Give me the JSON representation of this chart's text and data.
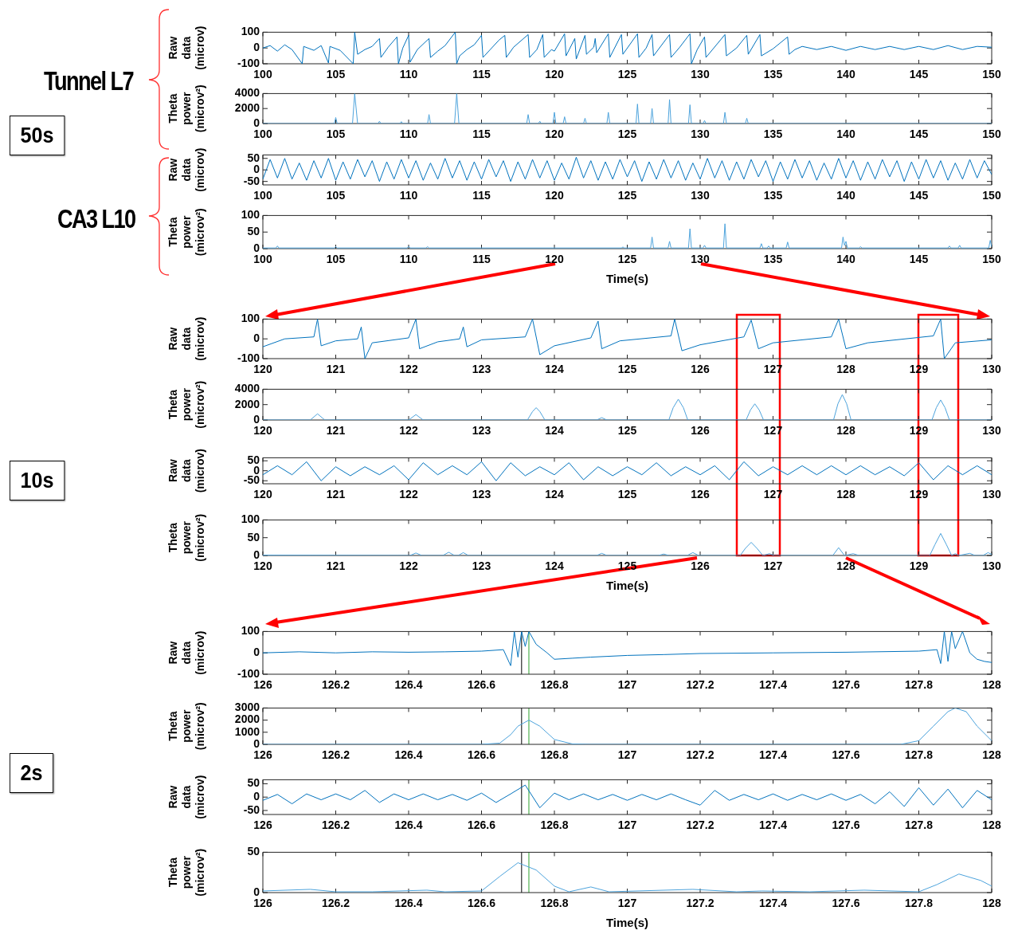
{
  "chart_data": [
    {
      "type": "line",
      "ylabel": "Raw data (microv)",
      "color": "#0072bd",
      "annotations": [
        "Tunnel L7",
        "50s"
      ],
      "xlim": [
        100,
        150
      ],
      "xticks": [
        100,
        105,
        110,
        115,
        120,
        125,
        130,
        135,
        140,
        145,
        150
      ],
      "ylim": [
        -100,
        100
      ],
      "yticks": [
        -100,
        0,
        100
      ],
      "x": [
        100,
        100.5,
        101,
        101.5,
        102,
        102.7,
        102.8,
        103.5,
        104,
        104.5,
        104.6,
        105.3,
        106.2,
        106.3,
        106.5,
        107,
        107.5,
        108,
        108.1,
        108.6,
        109.2,
        109.3,
        109.6,
        110,
        110.1,
        110.6,
        111.4,
        111.5,
        112,
        112.5,
        113.2,
        113.3,
        113.5,
        114,
        114.5,
        115,
        115.1,
        115.6,
        116.2,
        116.6,
        116.7,
        117.2,
        118.2,
        118.3,
        118.8,
        119.2,
        119.3,
        119.8,
        120,
        120.7,
        120.8,
        121.4,
        121.5,
        122.1,
        122.2,
        122.7,
        122.8,
        122.9,
        123.7,
        123.8,
        124.6,
        124.7,
        125.7,
        125.8,
        126.3,
        126.7,
        126.8,
        127.9,
        128,
        128.6,
        129.3,
        129.4,
        129.8,
        130.3,
        130.4,
        131.7,
        131.8,
        132.5,
        133.2,
        133.3,
        134.1,
        134.2,
        135,
        136,
        136.1,
        136.5,
        137,
        138,
        139,
        140,
        141,
        142,
        143,
        144,
        145,
        146,
        147,
        148,
        149,
        150
      ],
      "values": [
        0,
        15,
        -20,
        20,
        -10,
        -100,
        10,
        -15,
        15,
        -95,
        10,
        -15,
        -100,
        100,
        -40,
        -10,
        10,
        60,
        -60,
        5,
        70,
        -100,
        0,
        80,
        -90,
        -10,
        60,
        -60,
        -20,
        15,
        100,
        -100,
        -50,
        -10,
        20,
        80,
        -60,
        -10,
        50,
        80,
        -60,
        5,
        85,
        -60,
        -10,
        85,
        -60,
        -10,
        -20,
        90,
        -50,
        60,
        -70,
        80,
        -40,
        5,
        60,
        -30,
        90,
        -60,
        85,
        -40,
        90,
        -60,
        0,
        85,
        -50,
        85,
        -60,
        5,
        90,
        -100,
        -10,
        70,
        -60,
        85,
        -50,
        0,
        80,
        -40,
        85,
        -50,
        -5,
        70,
        -40,
        -10,
        10,
        -10,
        10,
        -15,
        10,
        -10,
        10,
        -10,
        10,
        -10,
        15,
        -10,
        10,
        5
      ]
    },
    {
      "type": "line",
      "ylabel": "Theta power (microv²)",
      "color": "#4da3dc",
      "xlim": [
        100,
        150
      ],
      "xticks": [
        100,
        105,
        110,
        115,
        120,
        125,
        130,
        135,
        140,
        145,
        150
      ],
      "ylim": [
        0,
        4000
      ],
      "yticks": [
        0,
        2000,
        4000
      ],
      "x": [
        100,
        104.9,
        105,
        105.1,
        106.15,
        106.3,
        106.5,
        107.9,
        108,
        108.1,
        109.4,
        109.5,
        109.6,
        111.3,
        111.4,
        111.5,
        113.15,
        113.3,
        113.45,
        118.1,
        118.2,
        118.3,
        118.9,
        119,
        119.1,
        119.9,
        120,
        120.1,
        120.6,
        120.7,
        120.8,
        122,
        122.1,
        122.2,
        123.6,
        123.7,
        123.8,
        125.6,
        125.7,
        125.8,
        126.6,
        126.7,
        126.8,
        127.8,
        127.9,
        128,
        129.2,
        129.3,
        129.4,
        130.2,
        130.3,
        130.4,
        131.6,
        131.7,
        131.8,
        133.1,
        133.2,
        133.3,
        150
      ],
      "values": [
        0,
        0,
        800,
        0,
        0,
        4000,
        0,
        0,
        300,
        0,
        0,
        250,
        0,
        0,
        1200,
        0,
        0,
        4000,
        0,
        0,
        1200,
        0,
        0,
        300,
        0,
        0,
        1500,
        0,
        0,
        900,
        0,
        0,
        700,
        0,
        0,
        1500,
        0,
        0,
        2600,
        0,
        0,
        2000,
        0,
        0,
        3200,
        0,
        0,
        2500,
        0,
        0,
        400,
        0,
        0,
        1500,
        0,
        0,
        700,
        0,
        0
      ]
    },
    {
      "type": "line",
      "ylabel": "Raw data (microv)",
      "color": "#0072bd",
      "annotations": [
        "CA3 L10"
      ],
      "xlim": [
        100,
        150
      ],
      "xticks": [
        100,
        105,
        110,
        115,
        120,
        125,
        130,
        135,
        140,
        145,
        150
      ],
      "ylim": [
        -65,
        65
      ],
      "yticks": [
        -50,
        0,
        50
      ],
      "x": [
        100,
        100.5,
        101,
        101.5,
        102,
        102.5,
        103,
        103.5,
        104,
        104.5,
        105,
        105.5,
        106,
        106.5,
        107,
        107.5,
        108,
        108.5,
        109,
        109.5,
        110,
        110.5,
        111,
        111.5,
        112,
        112.5,
        113,
        113.5,
        114,
        114.5,
        115,
        115.5,
        116,
        116.5,
        117,
        117.5,
        118,
        118.5,
        119,
        119.5,
        120,
        120.5,
        121,
        121.5,
        122,
        122.5,
        123,
        123.5,
        124,
        124.5,
        125,
        125.5,
        126,
        126.5,
        127,
        127.5,
        128,
        128.5,
        129,
        129.5,
        130,
        130.5,
        131,
        131.5,
        132,
        132.5,
        133,
        133.5,
        134,
        134.5,
        135,
        135.5,
        136,
        136.5,
        137,
        137.5,
        138,
        138.5,
        139,
        139.5,
        140,
        140.5,
        141,
        141.5,
        142,
        142.5,
        143,
        143.5,
        144,
        144.5,
        145,
        145.5,
        146,
        146.5,
        147,
        147.5,
        148,
        148.5,
        149,
        149.5,
        150
      ],
      "values": [
        -40,
        45,
        -35,
        50,
        -40,
        30,
        -45,
        40,
        -35,
        50,
        -45,
        35,
        -40,
        45,
        -30,
        40,
        -50,
        35,
        -40,
        45,
        -35,
        40,
        -45,
        30,
        -40,
        50,
        -35,
        40,
        -45,
        35,
        -40,
        45,
        -30,
        40,
        -50,
        35,
        -40,
        45,
        -35,
        40,
        -45,
        30,
        -40,
        55,
        -35,
        40,
        -45,
        35,
        -40,
        45,
        -30,
        40,
        -50,
        35,
        -40,
        45,
        -35,
        40,
        -45,
        30,
        -40,
        50,
        -35,
        40,
        -45,
        35,
        -40,
        45,
        -30,
        40,
        -50,
        35,
        -40,
        45,
        -35,
        40,
        -45,
        30,
        -40,
        50,
        -35,
        40,
        -45,
        35,
        -40,
        45,
        -30,
        40,
        -50,
        35,
        -40,
        45,
        -35,
        40,
        -45,
        30,
        -40,
        45,
        -35,
        40,
        -20
      ]
    },
    {
      "type": "line",
      "ylabel": "Theta power (microv²)",
      "xlabel": "Time(s)",
      "color": "#4da3dc",
      "xlim": [
        100,
        150
      ],
      "xticks": [
        100,
        105,
        110,
        115,
        120,
        125,
        130,
        135,
        140,
        145,
        150
      ],
      "ylim": [
        0,
        100
      ],
      "yticks": [
        0,
        50,
        100
      ],
      "x": [
        100,
        100.9,
        101,
        101.1,
        104.9,
        105,
        105.1,
        109.9,
        110,
        110.1,
        111.2,
        111.3,
        111.4,
        124.6,
        124.7,
        124.8,
        126.6,
        126.7,
        126.8,
        127.8,
        127.9,
        128,
        129.2,
        129.3,
        129.4,
        130.2,
        130.3,
        130.4,
        131.6,
        131.7,
        131.8,
        134.1,
        134.2,
        134.3,
        134.6,
        134.7,
        134.8,
        135.9,
        136,
        136.1,
        139.7,
        139.8,
        139.9,
        140,
        140.1,
        140.9,
        141,
        141.1,
        147,
        147.1,
        147.2,
        147.7,
        147.8,
        147.9,
        149.8,
        149.9,
        150
      ],
      "values": [
        2,
        2,
        8,
        2,
        2,
        6,
        2,
        2,
        7,
        2,
        2,
        6,
        2,
        2,
        5,
        2,
        2,
        35,
        2,
        2,
        22,
        2,
        2,
        60,
        2,
        2,
        10,
        2,
        2,
        75,
        2,
        2,
        15,
        2,
        2,
        8,
        2,
        2,
        20,
        2,
        2,
        35,
        10,
        22,
        2,
        2,
        6,
        2,
        2,
        8,
        2,
        2,
        10,
        2,
        2,
        25,
        5
      ]
    },
    {
      "type": "line",
      "ylabel": "Raw data (microv)",
      "color": "#0072bd",
      "annotations": [
        "10s"
      ],
      "xlim": [
        120,
        130
      ],
      "xticks": [
        120,
        121,
        122,
        123,
        124,
        125,
        126,
        127,
        128,
        129,
        130
      ],
      "ylim": [
        -100,
        100
      ],
      "yticks": [
        -100,
        0,
        100
      ],
      "x": [
        120,
        120.3,
        120.7,
        120.75,
        120.8,
        121,
        121.3,
        121.35,
        121.4,
        121.5,
        122,
        122.1,
        122.15,
        122.4,
        122.7,
        122.75,
        122.8,
        123,
        123.6,
        123.7,
        123.8,
        124,
        124.5,
        124.6,
        124.65,
        124.9,
        125.6,
        125.65,
        125.75,
        126,
        126.6,
        126.7,
        126.8,
        127,
        127.8,
        127.9,
        128,
        128.3,
        129.2,
        129.3,
        129.35,
        129.5,
        130
      ],
      "values": [
        -40,
        0,
        10,
        100,
        -35,
        -10,
        0,
        60,
        -100,
        -20,
        5,
        100,
        -50,
        -15,
        0,
        60,
        -40,
        -5,
        10,
        100,
        -80,
        -35,
        5,
        90,
        -50,
        -10,
        15,
        100,
        -60,
        -30,
        10,
        95,
        -50,
        -20,
        10,
        100,
        -50,
        -20,
        15,
        100,
        -100,
        -20,
        -5
      ]
    },
    {
      "type": "line",
      "ylabel": "Theta power (microv²)",
      "color": "#4da3dc",
      "xlim": [
        120,
        130
      ],
      "xticks": [
        120,
        121,
        122,
        123,
        124,
        125,
        126,
        127,
        128,
        129,
        130
      ],
      "ylim": [
        0,
        4000
      ],
      "yticks": [
        0,
        2000,
        4000
      ],
      "x": [
        120,
        120.65,
        120.75,
        120.85,
        122,
        122.1,
        122.2,
        123.63,
        123.7,
        123.75,
        123.8,
        123.87,
        124.58,
        124.65,
        124.72,
        125.57,
        125.63,
        125.7,
        125.77,
        125.83,
        126.63,
        126.69,
        126.75,
        126.81,
        126.87,
        127.83,
        127.89,
        127.95,
        128.01,
        128.07,
        129.18,
        129.24,
        129.3,
        129.36,
        129.42,
        130
      ],
      "values": [
        0,
        0,
        800,
        0,
        0,
        700,
        0,
        0,
        1100,
        1600,
        1100,
        0,
        0,
        300,
        0,
        0,
        1600,
        2700,
        1600,
        0,
        0,
        1300,
        2100,
        1300,
        0,
        0,
        2100,
        3300,
        2100,
        0,
        0,
        1600,
        2600,
        1600,
        0,
        0
      ]
    },
    {
      "type": "line",
      "ylabel": "Raw data (microv)",
      "color": "#0072bd",
      "xlim": [
        120,
        130
      ],
      "xticks": [
        120,
        121,
        122,
        123,
        124,
        125,
        126,
        127,
        128,
        129,
        130
      ],
      "ylim": [
        -65,
        65
      ],
      "yticks": [
        -50,
        0,
        50
      ],
      "x": [
        120,
        120.2,
        120.4,
        120.6,
        120.8,
        121,
        121.2,
        121.4,
        121.6,
        121.8,
        122,
        122.2,
        122.4,
        122.6,
        122.8,
        123,
        123.2,
        123.4,
        123.6,
        123.8,
        124,
        124.2,
        124.4,
        124.6,
        124.8,
        125,
        125.2,
        125.4,
        125.6,
        125.8,
        126,
        126.2,
        126.4,
        126.6,
        126.8,
        127,
        127.2,
        127.4,
        127.6,
        127.8,
        128,
        128.2,
        128.4,
        128.6,
        128.8,
        129,
        129.2,
        129.4,
        129.6,
        129.8,
        130
      ],
      "values": [
        -20,
        25,
        -20,
        45,
        -50,
        20,
        -25,
        20,
        -20,
        25,
        -45,
        40,
        -20,
        25,
        -20,
        45,
        -50,
        40,
        -25,
        20,
        -20,
        40,
        -45,
        20,
        -25,
        20,
        -20,
        40,
        -25,
        20,
        -20,
        25,
        -45,
        45,
        -25,
        20,
        -20,
        25,
        -20,
        25,
        -20,
        25,
        -20,
        20,
        -25,
        40,
        -45,
        25,
        -20,
        25,
        -20
      ]
    },
    {
      "type": "line",
      "ylabel": "Theta power (microv²)",
      "xlabel": "Time(s)",
      "color": "#4da3dc",
      "xlim": [
        120,
        130
      ],
      "xticks": [
        120,
        121,
        122,
        123,
        124,
        125,
        126,
        127,
        128,
        129,
        130
      ],
      "ylim": [
        0,
        100
      ],
      "yticks": [
        0,
        50,
        100
      ],
      "x": [
        120,
        122.02,
        122.1,
        122.18,
        122.47,
        122.55,
        122.63,
        122.68,
        122.75,
        122.82,
        124.58,
        124.65,
        124.72,
        125.43,
        125.5,
        125.57,
        125.82,
        125.9,
        125.98,
        126.55,
        126.62,
        126.7,
        126.78,
        126.86,
        126.95,
        127.02,
        127.82,
        127.9,
        127.98,
        128.1,
        128.18,
        129.15,
        129.22,
        129.3,
        129.38,
        129.45,
        129.5,
        129.55,
        129.7,
        129.77,
        129.88,
        129.95,
        130
      ],
      "values": [
        1,
        0,
        7,
        0,
        0,
        9,
        0,
        0,
        8,
        0,
        0,
        6,
        0,
        0,
        4,
        0,
        0,
        8,
        0,
        0,
        20,
        37,
        20,
        0,
        5,
        0,
        0,
        22,
        0,
        5,
        0,
        0,
        30,
        62,
        30,
        0,
        5,
        0,
        6,
        0,
        0,
        8,
        3
      ]
    },
    {
      "type": "line",
      "ylabel": "Raw data (microv)",
      "color": "#0072bd",
      "annotations": [
        "2s"
      ],
      "xlim": [
        126,
        128
      ],
      "xticks": [
        126,
        126.2,
        126.4,
        126.6,
        126.8,
        127,
        127.2,
        127.4,
        127.6,
        127.8,
        128
      ],
      "ylim": [
        -100,
        100
      ],
      "yticks": [
        -100,
        0,
        100
      ],
      "ref_lines": [
        {
          "axis": "x",
          "value": 126.71,
          "color": "#000000"
        },
        {
          "axis": "x",
          "value": 126.73,
          "color": "#2ca02c"
        }
      ],
      "x": [
        126,
        126.1,
        126.2,
        126.3,
        126.4,
        126.5,
        126.6,
        126.66,
        126.68,
        126.69,
        126.7,
        126.71,
        126.72,
        126.73,
        126.75,
        126.78,
        126.8,
        126.85,
        126.9,
        127,
        127.1,
        127.2,
        127.4,
        127.6,
        127.8,
        127.85,
        127.86,
        127.87,
        127.88,
        127.89,
        127.9,
        127.92,
        127.94,
        127.96,
        127.98,
        128
      ],
      "values": [
        0,
        5,
        0,
        5,
        3,
        5,
        8,
        15,
        -60,
        100,
        -20,
        100,
        30,
        100,
        40,
        0,
        -30,
        -25,
        -20,
        -12,
        -8,
        -3,
        0,
        3,
        8,
        15,
        -50,
        100,
        -40,
        100,
        20,
        100,
        0,
        -30,
        -40,
        -45
      ]
    },
    {
      "type": "line",
      "ylabel": "Theta power (microv²)",
      "color": "#4da3dc",
      "xlim": [
        126,
        128
      ],
      "xticks": [
        126,
        126.2,
        126.4,
        126.6,
        126.8,
        127,
        127.2,
        127.4,
        127.6,
        127.8,
        128
      ],
      "ylim": [
        0,
        3000
      ],
      "yticks": [
        0,
        1000,
        2000,
        3000
      ],
      "ref_lines": [
        {
          "axis": "x",
          "value": 126.71,
          "color": "#000000"
        },
        {
          "axis": "x",
          "value": 126.73,
          "color": "#2ca02c"
        }
      ],
      "x": [
        126,
        126.6,
        126.65,
        126.68,
        126.7,
        126.73,
        126.76,
        126.8,
        126.85,
        126.9,
        127.75,
        127.8,
        127.84,
        127.88,
        127.9,
        127.93,
        127.96,
        128
      ],
      "values": [
        0,
        0,
        100,
        800,
        1500,
        2000,
        1500,
        400,
        30,
        0,
        0,
        300,
        1500,
        2700,
        3000,
        2700,
        1500,
        300
      ]
    },
    {
      "type": "line",
      "ylabel": "Raw data (microv)",
      "color": "#0072bd",
      "xlim": [
        126,
        128
      ],
      "xticks": [
        126,
        126.2,
        126.4,
        126.6,
        126.8,
        127,
        127.2,
        127.4,
        127.6,
        127.8,
        128
      ],
      "ylim": [
        -65,
        65
      ],
      "yticks": [
        -50,
        0,
        50
      ],
      "ref_lines": [
        {
          "axis": "x",
          "value": 126.71,
          "color": "#000000"
        },
        {
          "axis": "x",
          "value": 126.73,
          "color": "#2ca02c"
        }
      ],
      "x": [
        126,
        126.04,
        126.08,
        126.12,
        126.16,
        126.2,
        126.24,
        126.28,
        126.32,
        126.36,
        126.4,
        126.44,
        126.48,
        126.52,
        126.56,
        126.6,
        126.64,
        126.68,
        126.72,
        126.76,
        126.8,
        126.84,
        126.88,
        126.92,
        126.96,
        127,
        127.04,
        127.08,
        127.12,
        127.16,
        127.2,
        127.24,
        127.28,
        127.32,
        127.36,
        127.4,
        127.44,
        127.48,
        127.52,
        127.56,
        127.6,
        127.64,
        127.68,
        127.72,
        127.76,
        127.8,
        127.84,
        127.88,
        127.92,
        127.96,
        128
      ],
      "values": [
        -12,
        10,
        -25,
        12,
        -10,
        12,
        -10,
        25,
        -20,
        12,
        -10,
        12,
        -10,
        10,
        -12,
        15,
        -20,
        12,
        45,
        -40,
        15,
        -10,
        12,
        -10,
        10,
        -12,
        10,
        -10,
        12,
        -10,
        -30,
        25,
        -12,
        10,
        -10,
        12,
        -12,
        10,
        -10,
        12,
        -12,
        10,
        -25,
        20,
        -35,
        35,
        -30,
        30,
        -40,
        25,
        -10
      ]
    },
    {
      "type": "line",
      "ylabel": "Theta power (microv²)",
      "xlabel": "Time(s)",
      "color": "#4da3dc",
      "xlim": [
        126,
        128
      ],
      "xticks": [
        126,
        126.2,
        126.4,
        126.6,
        126.8,
        127,
        127.2,
        127.4,
        127.6,
        127.8,
        128
      ],
      "ylim": [
        0,
        50
      ],
      "yticks": [
        0,
        50
      ],
      "ref_lines": [
        {
          "axis": "x",
          "value": 126.71,
          "color": "#000000"
        },
        {
          "axis": "x",
          "value": 126.73,
          "color": "#2ca02c"
        }
      ],
      "x": [
        126,
        126.13,
        126.2,
        126.3,
        126.45,
        126.5,
        126.6,
        126.65,
        126.7,
        126.75,
        126.8,
        126.84,
        126.9,
        126.95,
        127.18,
        127.3,
        127.37,
        127.5,
        127.65,
        127.8,
        127.85,
        127.91,
        127.97,
        128
      ],
      "values": [
        2,
        4,
        1,
        1,
        3,
        1,
        2,
        20,
        37,
        28,
        8,
        1,
        7,
        1,
        4,
        1,
        2,
        1,
        3,
        1,
        10,
        23,
        15,
        8
      ]
    }
  ]
}
